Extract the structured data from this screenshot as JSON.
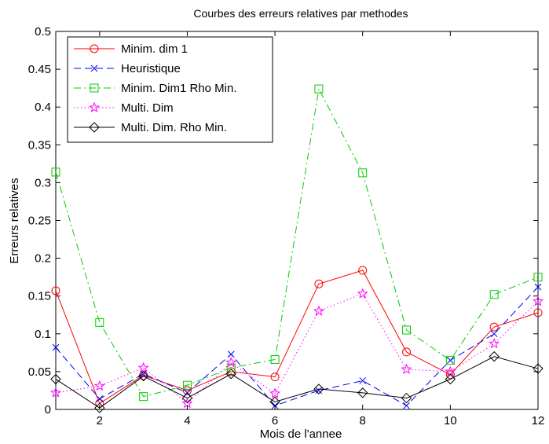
{
  "chart_data": {
    "type": "line",
    "title": "Courbes des erreurs relatives par methodes",
    "xlabel": "Mois de l'annee",
    "ylabel": "Erreurs relatives",
    "xlim": [
      1,
      12
    ],
    "ylim": [
      0,
      0.5
    ],
    "xticks": [
      2,
      4,
      6,
      8,
      10,
      12
    ],
    "yticks": [
      0,
      0.05,
      0.1,
      0.15,
      0.2,
      0.25,
      0.3,
      0.35,
      0.4,
      0.45,
      0.5
    ],
    "ytick_labels": [
      "0",
      "0.05",
      "0.1",
      "0.15",
      "0.2",
      "0.25",
      "0.3",
      "0.35",
      "0.4",
      "0.45",
      "0.5"
    ],
    "xtick_labels": [
      "2",
      "4",
      "6",
      "8",
      "10",
      "12"
    ],
    "grid": false,
    "legend_position": "top-left",
    "x": [
      1,
      2,
      3,
      4,
      5,
      6,
      7,
      8,
      9,
      10,
      11,
      12
    ],
    "series": [
      {
        "name": "Minim. dim 1",
        "color": "#ff0000",
        "line_style": "solid",
        "marker": "circle",
        "values": [
          0.157,
          0.008,
          0.045,
          0.025,
          0.05,
          0.043,
          0.166,
          0.184,
          0.076,
          0.046,
          0.109,
          0.128
        ]
      },
      {
        "name": "Heuristique",
        "color": "#0000ff",
        "line_style": "dashed",
        "marker": "x",
        "values": [
          0.082,
          0.014,
          0.047,
          0.022,
          0.073,
          0.005,
          0.025,
          0.038,
          0.005,
          0.065,
          0.1,
          0.162
        ]
      },
      {
        "name": "Minim. Dim1 Rho Min.",
        "color": "#00cc00",
        "line_style": "dashdot",
        "marker": "square",
        "values": [
          0.314,
          0.115,
          0.017,
          0.032,
          0.055,
          0.066,
          0.424,
          0.313,
          0.105,
          0.065,
          0.152,
          0.175
        ]
      },
      {
        "name": "Multi. Dim",
        "color": "#ff00ff",
        "line_style": "dotted",
        "marker": "star",
        "values": [
          0.022,
          0.031,
          0.055,
          0.008,
          0.062,
          0.021,
          0.13,
          0.153,
          0.053,
          0.05,
          0.087,
          0.143
        ]
      },
      {
        "name": "Multi. Dim. Rho Min.",
        "color": "#000000",
        "line_style": "solid",
        "marker": "diamond",
        "values": [
          0.04,
          0.002,
          0.044,
          0.015,
          0.047,
          0.01,
          0.027,
          0.022,
          0.015,
          0.04,
          0.07,
          0.054
        ]
      }
    ]
  }
}
